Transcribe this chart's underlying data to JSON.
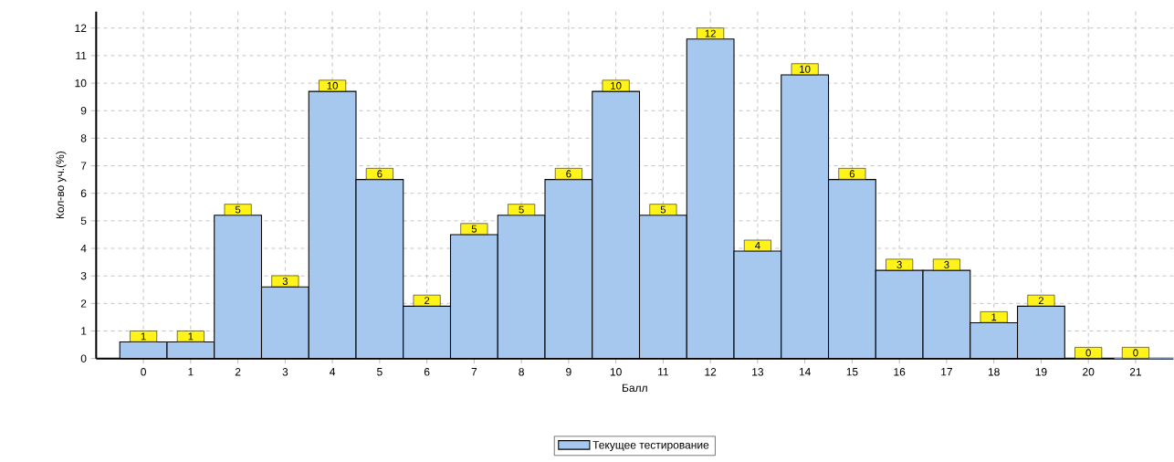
{
  "chart_data": {
    "type": "bar",
    "xlabel": "Балл",
    "ylabel": "Кол-во уч.(%)",
    "categories": [
      "0",
      "1",
      "2",
      "3",
      "4",
      "5",
      "6",
      "7",
      "8",
      "9",
      "10",
      "11",
      "12",
      "13",
      "14",
      "15",
      "16",
      "17",
      "18",
      "19",
      "20",
      "21"
    ],
    "series": [
      {
        "name": "Текущее тестирование",
        "color": "#a6c8ee",
        "values": [
          0.6,
          0.6,
          5.2,
          2.6,
          9.7,
          6.5,
          1.9,
          4.5,
          5.2,
          6.5,
          9.7,
          5.2,
          11.6,
          3.9,
          10.3,
          6.5,
          3.2,
          3.2,
          1.3,
          1.9,
          0,
          0
        ],
        "value_labels": [
          "1",
          "1",
          "5",
          "3",
          "10",
          "6",
          "2",
          "5",
          "5",
          "6",
          "10",
          "5",
          "12",
          "4",
          "10",
          "6",
          "3",
          "3",
          "1",
          "2",
          "0",
          "0"
        ]
      }
    ],
    "ylim": [
      0,
      12.6
    ],
    "yticks": [
      0,
      1,
      2,
      3,
      4,
      5,
      6,
      7,
      8,
      9,
      10,
      11,
      12
    ],
    "grid": true,
    "legend": "bottom"
  }
}
